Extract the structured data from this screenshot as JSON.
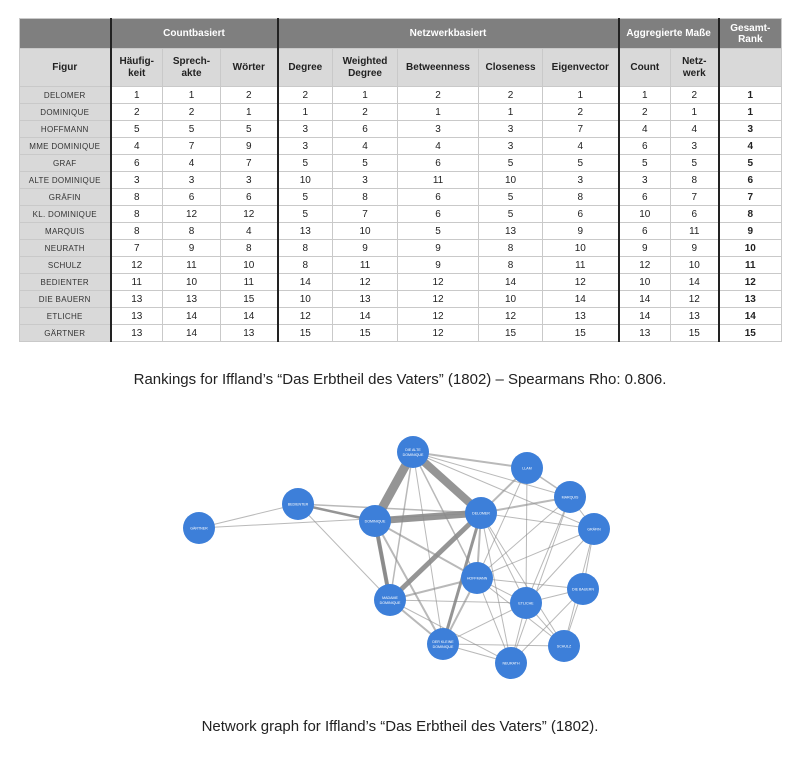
{
  "table": {
    "group_headers": {
      "countbasiert": "Countbasiert",
      "netzwerkbasiert": "Netzwerkbasiert",
      "aggregierte": "Aggregierte Maße",
      "gesamt": "Gesamt-\nRank"
    },
    "sub_headers": {
      "figur": "Figur",
      "haeufigkeit": "Häufig-\nkeit",
      "sprechakte": "Sprech-\nakte",
      "woerter": "Wörter",
      "degree": "Degree",
      "weighted_degree": "Weighted\nDegree",
      "betweenness": "Betweenness",
      "closeness": "Closeness",
      "eigenvector": "Eigenvector",
      "count": "Count",
      "netzwerk": "Netz-\nwerk"
    },
    "rows": [
      {
        "figur": "DELOMER",
        "values": [
          "1",
          "1",
          "2",
          "2",
          "1",
          "2",
          "2",
          "1",
          "1",
          "2",
          "1"
        ]
      },
      {
        "figur": "DOMINIQUE",
        "values": [
          "2",
          "2",
          "1",
          "1",
          "2",
          "1",
          "1",
          "2",
          "2",
          "1",
          "1"
        ]
      },
      {
        "figur": "HOFFMANN",
        "values": [
          "5",
          "5",
          "5",
          "3",
          "6",
          "3",
          "3",
          "7",
          "4",
          "4",
          "3"
        ]
      },
      {
        "figur": "MME DOMINIQUE",
        "values": [
          "4",
          "7",
          "9",
          "3",
          "4",
          "4",
          "3",
          "4",
          "6",
          "3",
          "4"
        ]
      },
      {
        "figur": "GRAF",
        "values": [
          "6",
          "4",
          "7",
          "5",
          "5",
          "6",
          "5",
          "5",
          "5",
          "5",
          "5"
        ]
      },
      {
        "figur": "ALTE DOMINIQUE",
        "values": [
          "3",
          "3",
          "3",
          "10",
          "3",
          "11",
          "10",
          "3",
          "3",
          "8",
          "6"
        ]
      },
      {
        "figur": "GRÄFIN",
        "values": [
          "8",
          "6",
          "6",
          "5",
          "8",
          "6",
          "5",
          "8",
          "6",
          "7",
          "7"
        ]
      },
      {
        "figur": "KL. DOMINIQUE",
        "values": [
          "8",
          "12",
          "12",
          "5",
          "7",
          "6",
          "5",
          "6",
          "10",
          "6",
          "8"
        ]
      },
      {
        "figur": "MARQUIS",
        "values": [
          "8",
          "8",
          "4",
          "13",
          "10",
          "5",
          "13",
          "9",
          "6",
          "11",
          "9"
        ]
      },
      {
        "figur": "NEURATH",
        "values": [
          "7",
          "9",
          "8",
          "8",
          "9",
          "9",
          "8",
          "10",
          "9",
          "9",
          "10"
        ]
      },
      {
        "figur": "SCHULZ",
        "values": [
          "12",
          "11",
          "10",
          "8",
          "11",
          "9",
          "8",
          "11",
          "12",
          "10",
          "11"
        ]
      },
      {
        "figur": "BEDIENTER",
        "values": [
          "11",
          "10",
          "11",
          "14",
          "12",
          "12",
          "14",
          "12",
          "10",
          "14",
          "12"
        ]
      },
      {
        "figur": "DIE BAUERN",
        "values": [
          "13",
          "13",
          "15",
          "10",
          "13",
          "12",
          "10",
          "14",
          "14",
          "12",
          "13"
        ]
      },
      {
        "figur": "ETLICHE",
        "values": [
          "13",
          "14",
          "14",
          "12",
          "14",
          "12",
          "12",
          "13",
          "14",
          "13",
          "14"
        ]
      },
      {
        "figur": "GÄRTNER",
        "values": [
          "13",
          "14",
          "13",
          "15",
          "15",
          "12",
          "15",
          "15",
          "13",
          "15",
          "15"
        ]
      }
    ]
  },
  "captions": {
    "table": "Rankings for Iffland’s “Das Erbtheil des Vaters” (1802) – Spearmans Rho: 0.806.",
    "graph": "Network graph for Iffland’s “Das Erbtheil des Vaters” (1802)."
  },
  "graph": {
    "node_color": "#3d7fd9",
    "edge_color": "#8a8a8a",
    "nodes": [
      {
        "id": "alte",
        "label1": "DIE ALTE",
        "label2": "DOMINIQUE"
      },
      {
        "id": "llam",
        "label1": "LLAM",
        "label2": ""
      },
      {
        "id": "marquis",
        "label1": "MARQUIS",
        "label2": ""
      },
      {
        "id": "graefin",
        "label1": "GRÄFIN",
        "label2": ""
      },
      {
        "id": "dominique",
        "label1": "DOMINIQUE",
        "label2": ""
      },
      {
        "id": "delomer",
        "label1": "DELOMER",
        "label2": ""
      },
      {
        "id": "bedienter",
        "label1": "BEDIENTER",
        "label2": ""
      },
      {
        "id": "gaertner",
        "label1": "GÄRTNER",
        "label2": ""
      },
      {
        "id": "hoffmann",
        "label1": "HOFFMANN",
        "label2": ""
      },
      {
        "id": "bauern",
        "label1": "DIE BAUERN",
        "label2": ""
      },
      {
        "id": "mme",
        "label1": "MADAME",
        "label2": "DOMINIQUE"
      },
      {
        "id": "etliche",
        "label1": "ETLICHE",
        "label2": ""
      },
      {
        "id": "kleine",
        "label1": "DER KLEINE",
        "label2": "DOMINIQUE"
      },
      {
        "id": "schulz",
        "label1": "SCHULZ",
        "label2": ""
      },
      {
        "id": "neurath",
        "label1": "NEURATH",
        "label2": ""
      }
    ]
  }
}
